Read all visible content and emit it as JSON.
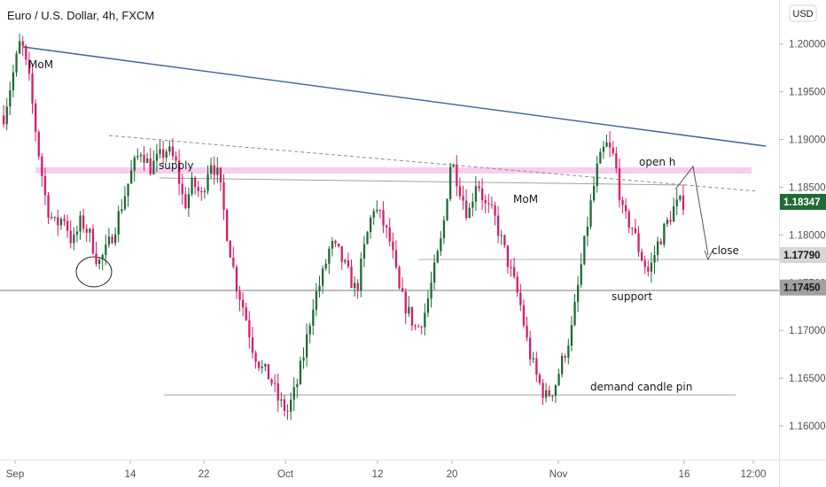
{
  "chart_data": {
    "type": "candlestick",
    "title": "Euro / U.S. Dollar, 4h, FXCM",
    "currency": "USD",
    "ylim": [
      1.1575,
      1.2035
    ],
    "y_ticks": [
      "1.20000",
      "1.19500",
      "1.19000",
      "1.18500",
      "1.18000",
      "1.17500",
      "1.17000",
      "1.16500",
      "1.16000"
    ],
    "x_ticks": [
      "Sep",
      "14",
      "22",
      "Oct",
      "12",
      "20",
      "Nov",
      "16",
      "12:00"
    ],
    "price_tags": [
      {
        "label": "1.18347",
        "value": 1.18347,
        "bg": "#1e6b34",
        "fg": "#ffffff"
      },
      {
        "label": "1.17790",
        "value": 1.1779,
        "bg": "#d6d6d6",
        "fg": "#131722"
      },
      {
        "label": "1.17450",
        "value": 1.1745,
        "bg": "#a0a0a0",
        "fg": "#131722"
      }
    ],
    "price_path": [
      1.1925,
      1.1965,
      1.2005,
      1.196,
      1.189,
      1.183,
      1.181,
      1.182,
      1.179,
      1.1815,
      1.18,
      1.177,
      1.1785,
      1.181,
      1.184,
      1.187,
      1.189,
      1.187,
      1.188,
      1.189,
      1.1875,
      1.183,
      1.1855,
      1.184,
      1.188,
      1.186,
      1.18,
      1.175,
      1.172,
      1.168,
      1.166,
      1.165,
      1.1625,
      1.1615,
      1.164,
      1.168,
      1.173,
      1.1755,
      1.179,
      1.178,
      1.176,
      1.174,
      1.179,
      1.183,
      1.1815,
      1.179,
      1.174,
      1.172,
      1.17,
      1.172,
      1.176,
      1.18,
      1.188,
      1.185,
      1.182,
      1.186,
      1.183,
      1.182,
      1.179,
      1.176,
      1.173,
      1.168,
      1.165,
      1.163,
      1.164,
      1.167,
      1.17,
      1.176,
      1.182,
      1.187,
      1.1895,
      1.188,
      1.182,
      1.181,
      1.178,
      1.176,
      1.179,
      1.181,
      1.183,
      1.18347
    ],
    "lines": [
      {
        "kind": "trend",
        "from": [
          "Sep",
          1.201
        ],
        "to": [
          "12:00",
          1.1905
        ],
        "color": "#3f5fa5"
      },
      {
        "kind": "trend-dashed",
        "from": [
          "14",
          1.1915
        ],
        "to": [
          "12:00",
          1.1855
        ],
        "color": "#8a8a8a"
      },
      {
        "kind": "zone",
        "level": 1.1875,
        "color": "#f3c6f0"
      },
      {
        "kind": "trend",
        "from": [
          "14",
          1.1868
        ],
        "to": [
          "16",
          1.186
        ],
        "color": "#9aa69a"
      },
      {
        "kind": "horizontal",
        "level": 1.1779,
        "color": "#b0b0b0"
      },
      {
        "kind": "horizontal",
        "level": 1.1745,
        "color": "#808080"
      },
      {
        "kind": "horizontal",
        "level": 1.163,
        "color": "#a0a0a0"
      }
    ],
    "annotations": [
      "MoM",
      "supply",
      "MoM",
      "open h",
      "close",
      "support",
      "demand candle pin"
    ]
  }
}
